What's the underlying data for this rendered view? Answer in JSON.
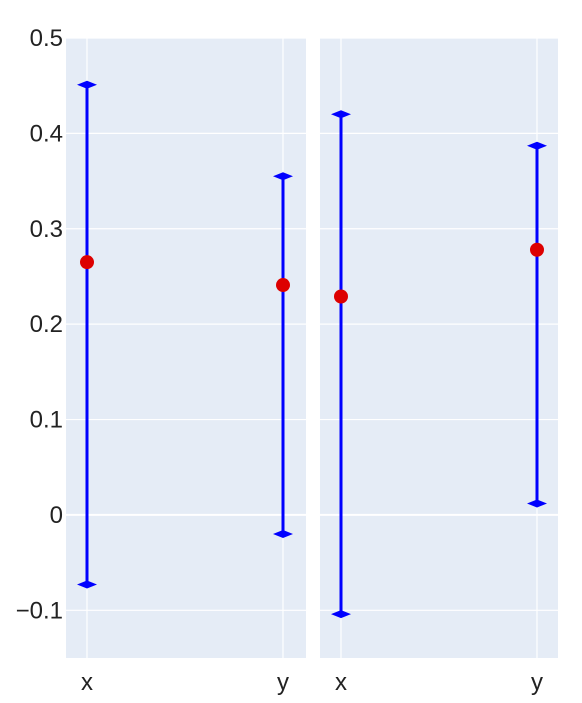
{
  "chart_data": {
    "type": "scatter",
    "panels": [
      {
        "name": "left",
        "categories": [
          "x",
          "y"
        ],
        "points": [
          {
            "category": "x",
            "value": 0.265,
            "low": -0.073,
            "high": 0.451
          },
          {
            "category": "y",
            "value": 0.241,
            "low": -0.02,
            "high": 0.355
          }
        ]
      },
      {
        "name": "right",
        "categories": [
          "x",
          "y"
        ],
        "points": [
          {
            "category": "x",
            "value": 0.229,
            "low": -0.104,
            "high": 0.42
          },
          {
            "category": "y",
            "value": 0.278,
            "low": 0.012,
            "high": 0.387
          }
        ]
      }
    ],
    "ylim": [
      -0.15,
      0.5
    ],
    "yticks": [
      0.5,
      0.4,
      0.3,
      0.2,
      0.1,
      0,
      -0.1
    ],
    "ytick_labels": [
      "0.5",
      "0.4",
      "0.3",
      "0.2",
      "0.1",
      "0",
      "−0.1"
    ],
    "grid": true,
    "colors": {
      "plot_bg": "#e5ecf6",
      "grid": "#ffffff",
      "error_bar": "#0000ff",
      "marker": "#dd0000"
    }
  }
}
